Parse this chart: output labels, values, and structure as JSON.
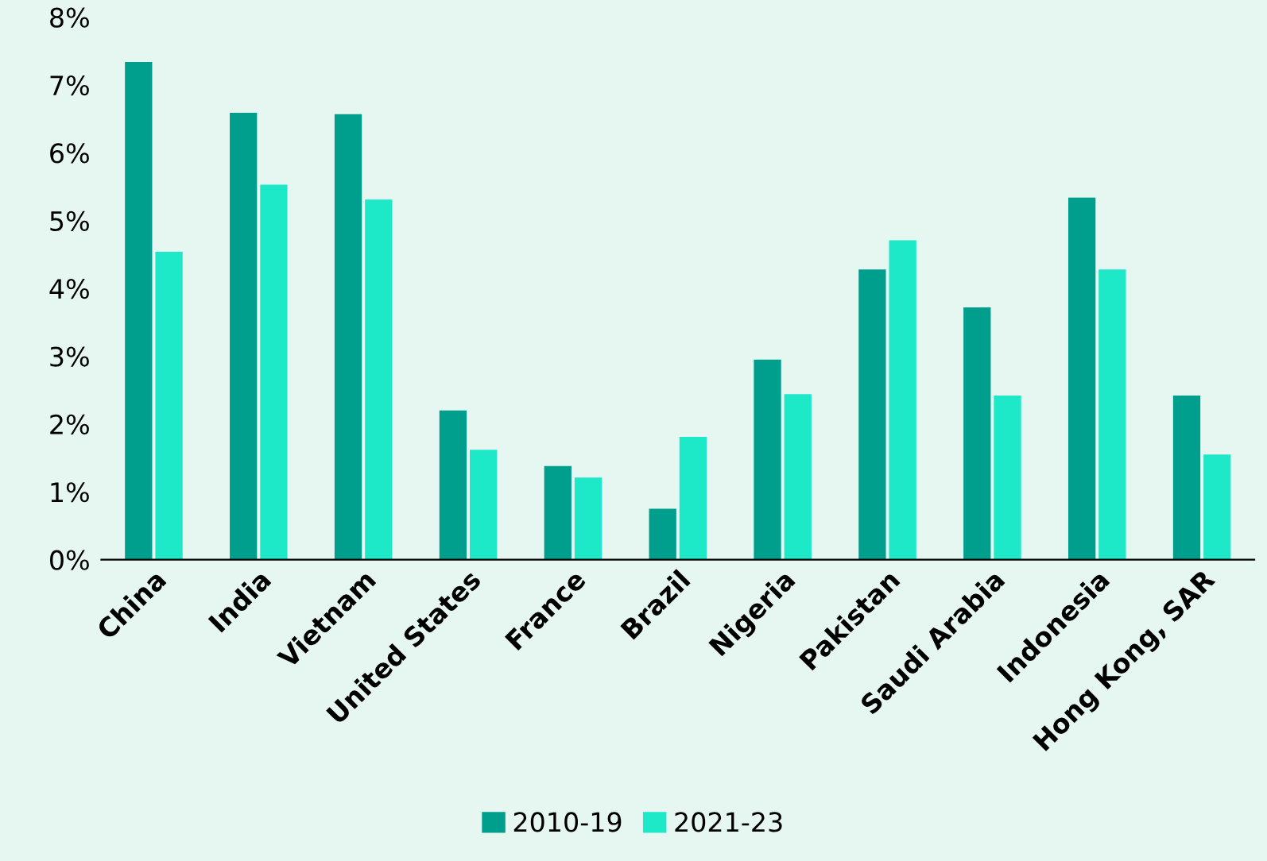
{
  "chart_data": {
    "type": "bar",
    "categories": [
      "China",
      "India",
      "Vietnam",
      "United States",
      "France",
      "Brazil",
      "Nigeria",
      "Pakistan",
      "Saudi Arabia",
      "Indonesia",
      "Hong Kong, SAR"
    ],
    "series": [
      {
        "name": "2010-19",
        "color": "#009e8c",
        "values": [
          7.34,
          6.59,
          6.57,
          2.2,
          1.38,
          0.75,
          2.95,
          4.28,
          3.72,
          5.34,
          2.42
        ]
      },
      {
        "name": "2021-23",
        "color": "#1de9c8",
        "values": [
          4.54,
          5.53,
          5.31,
          1.62,
          1.21,
          1.81,
          2.44,
          4.71,
          2.42,
          4.28,
          1.55
        ]
      }
    ],
    "ylim": [
      0,
      8
    ],
    "yticks": [
      {
        "value": 0,
        "label": "0%"
      },
      {
        "value": 1,
        "label": "1%"
      },
      {
        "value": 2,
        "label": "2%"
      },
      {
        "value": 3,
        "label": "3%"
      },
      {
        "value": 4,
        "label": "4%"
      },
      {
        "value": 5,
        "label": "5%"
      },
      {
        "value": 6,
        "label": "6%"
      },
      {
        "value": 7,
        "label": "7%"
      },
      {
        "value": 8,
        "label": "8%"
      }
    ],
    "grid": false,
    "legend": "bottom"
  }
}
